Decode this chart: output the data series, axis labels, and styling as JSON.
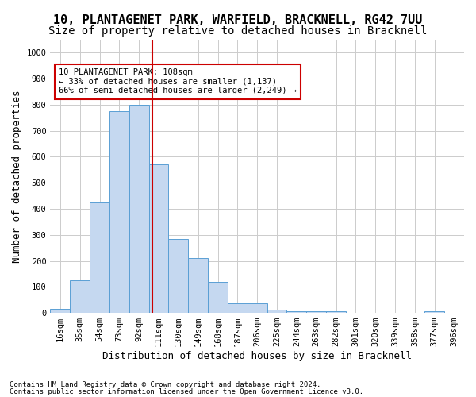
{
  "title1": "10, PLANTAGENET PARK, WARFIELD, BRACKNELL, RG42 7UU",
  "title2": "Size of property relative to detached houses in Bracknell",
  "xlabel": "Distribution of detached houses by size in Bracknell",
  "ylabel": "Number of detached properties",
  "bin_labels": [
    "16sqm",
    "35sqm",
    "54sqm",
    "73sqm",
    "92sqm",
    "111sqm",
    "130sqm",
    "149sqm",
    "168sqm",
    "187sqm",
    "206sqm",
    "225sqm",
    "244sqm",
    "263sqm",
    "282sqm",
    "301sqm",
    "320sqm",
    "339sqm",
    "358sqm",
    "377sqm",
    "396sqm"
  ],
  "bar_heights": [
    15,
    125,
    425,
    775,
    800,
    570,
    285,
    210,
    120,
    38,
    38,
    12,
    7,
    7,
    5,
    0,
    0,
    0,
    0,
    5,
    0
  ],
  "bar_color": "#c5d8f0",
  "bar_edge_color": "#5a9fd4",
  "vline_x": 4.67,
  "vline_color": "#cc0000",
  "annotation_text": "10 PLANTAGENET PARK: 108sqm\n← 33% of detached houses are smaller (1,137)\n66% of semi-detached houses are larger (2,249) →",
  "annotation_box_color": "#ffffff",
  "annotation_box_edge": "#cc0000",
  "ylim": [
    0,
    1050
  ],
  "yticks": [
    0,
    100,
    200,
    300,
    400,
    500,
    600,
    700,
    800,
    900,
    1000
  ],
  "footer1": "Contains HM Land Registry data © Crown copyright and database right 2024.",
  "footer2": "Contains public sector information licensed under the Open Government Licence v3.0.",
  "bg_color": "#ffffff",
  "grid_color": "#cccccc",
  "title1_fontsize": 11,
  "title2_fontsize": 10,
  "tick_fontsize": 7.5,
  "ylabel_fontsize": 9,
  "xlabel_fontsize": 9
}
